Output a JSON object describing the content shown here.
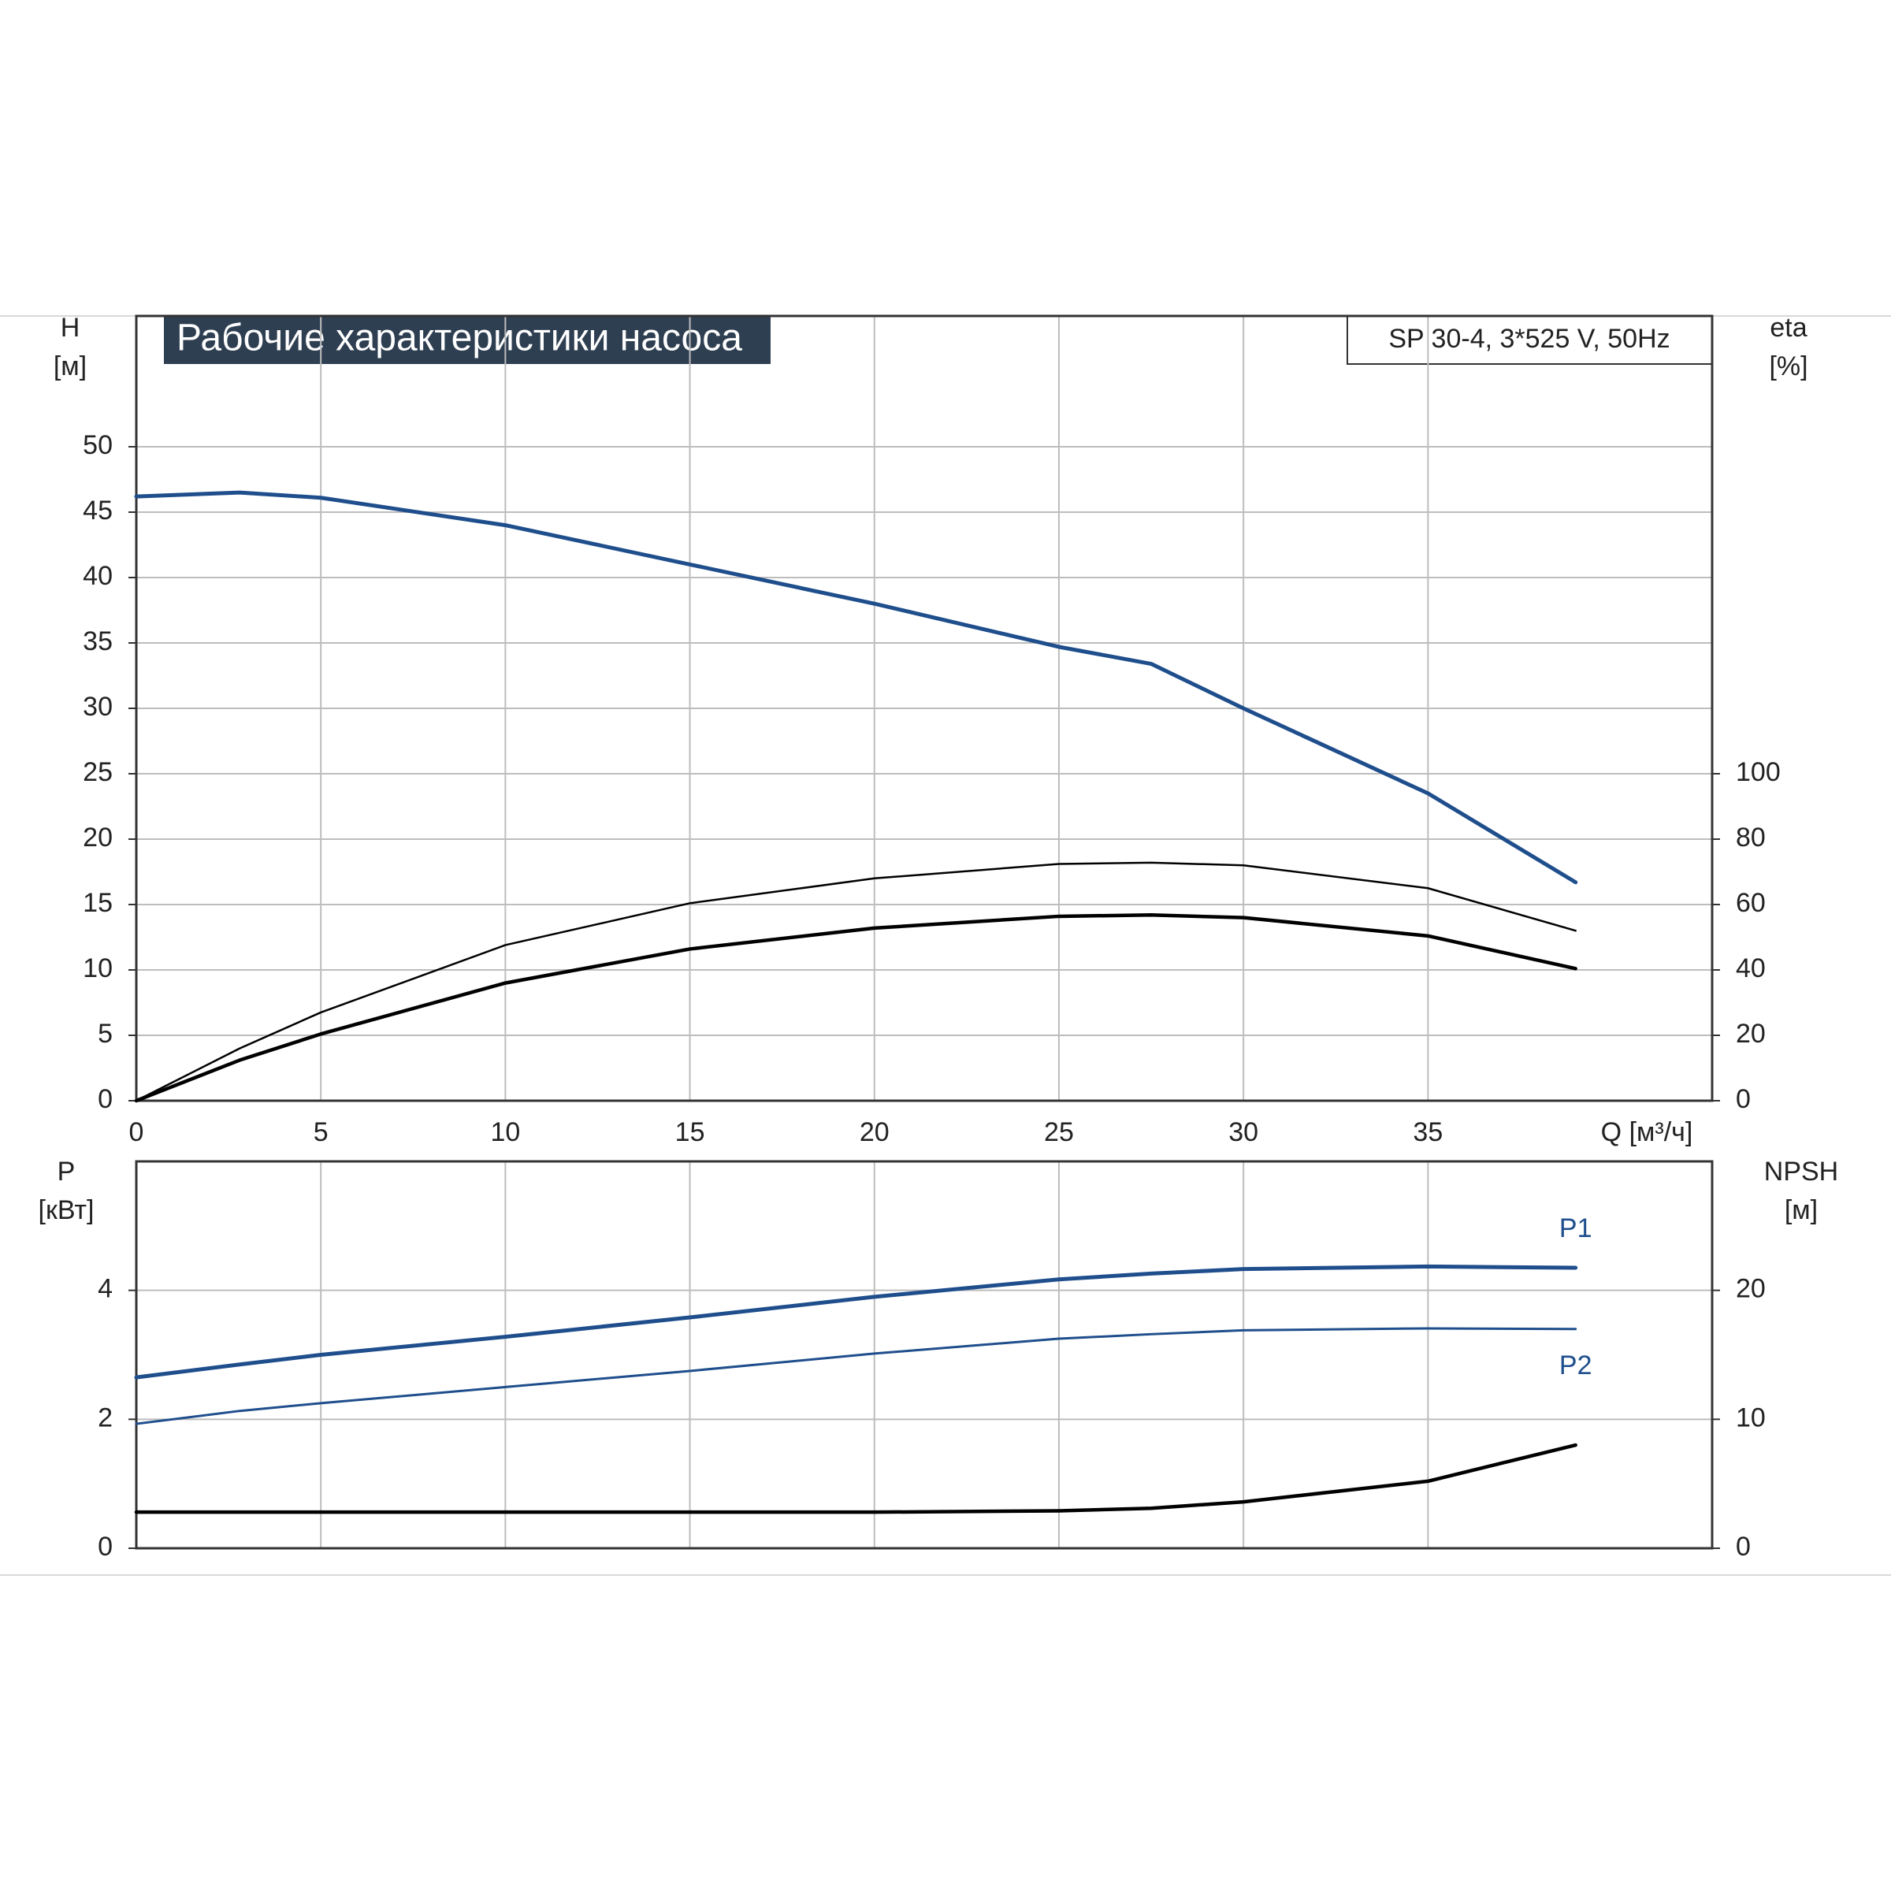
{
  "chart_data": [
    {
      "type": "line",
      "title": "Рабочие характеристики насоса",
      "subtitle": "SP 30-4, 3*525 V, 50Hz",
      "ylabel": "H",
      "yunit": "[м]",
      "y2label": "eta",
      "y2unit": "[%]",
      "xlabel": "Q [м³/ч]",
      "x": [
        0,
        2.8,
        5,
        10,
        15,
        20,
        25,
        27.5,
        30,
        35,
        39
      ],
      "xlim": [
        0,
        42.7
      ],
      "xticks": [
        0,
        5,
        10,
        15,
        20,
        25,
        30,
        35
      ],
      "ylim": [
        0,
        60
      ],
      "yticks": [
        0,
        5,
        10,
        15,
        20,
        25,
        30,
        35,
        40,
        45,
        50
      ],
      "y2lim": [
        0,
        240
      ],
      "y2ticks": [
        0,
        20,
        40,
        60,
        80,
        100
      ],
      "grid": true,
      "series": [
        {
          "color": "#1f4e8c",
          "values": [
            46.2,
            46.5,
            46.1,
            44,
            41,
            38,
            34.7,
            33.4,
            30,
            23.5,
            16.7
          ]
        },
        {
          "color": "#000000",
          "axis": "y2",
          "values": [
            0,
            16,
            27,
            47.6,
            60.4,
            68,
            72.4,
            72.8,
            72,
            65,
            52
          ]
        },
        {
          "color": "#000000",
          "axis": "y2",
          "values": [
            0,
            12.4,
            20.4,
            36,
            46.4,
            52.8,
            56.4,
            56.8,
            56,
            50.4,
            40.4
          ]
        }
      ]
    },
    {
      "type": "line",
      "ylabel": "P",
      "yunit": "[кВт]",
      "y2label": "NPSH",
      "y2unit": "[м]",
      "x": [
        0,
        2.8,
        5,
        10,
        15,
        20,
        25,
        27.5,
        30,
        35,
        39
      ],
      "xlim": [
        0,
        42.7
      ],
      "ylim": [
        0,
        6
      ],
      "yticks": [
        0,
        2,
        4
      ],
      "y2lim": [
        0,
        30
      ],
      "y2ticks": [
        0,
        10,
        20
      ],
      "grid": true,
      "series": [
        {
          "name": "P1",
          "color": "#1f4e8c",
          "values": [
            2.65,
            2.85,
            3.0,
            3.28,
            3.58,
            3.9,
            4.17,
            4.26,
            4.33,
            4.37,
            4.35
          ]
        },
        {
          "name": "P2",
          "color": "#1f4e8c",
          "values": [
            1.93,
            2.13,
            2.25,
            2.5,
            2.75,
            3.02,
            3.25,
            3.32,
            3.38,
            3.41,
            3.4
          ]
        },
        {
          "color": "#000000",
          "axis": "y2",
          "values": [
            2.8,
            2.8,
            2.8,
            2.8,
            2.8,
            2.8,
            2.9,
            3.1,
            3.6,
            5.2,
            8.0
          ]
        }
      ]
    }
  ]
}
